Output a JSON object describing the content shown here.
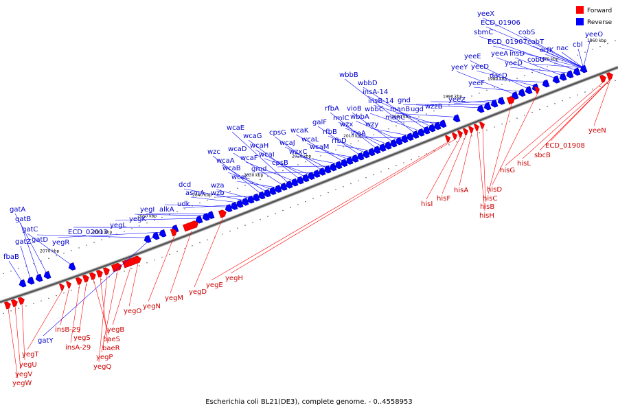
{
  "caption": "Escherichia coli BL21(DE3), complete genome. - 0..4558953",
  "legend": {
    "forward_label": "Forward",
    "reverse_label": "Reverse"
  },
  "colors": {
    "forward": "#ff0000",
    "reverse": "#0000ff",
    "forward_label": "#cc0000",
    "reverse_label": "#0000cc",
    "backbone": "#555555"
  },
  "ticks": [
    "2070 kbp",
    "2060 kbp",
    "2050 kbp",
    "2040 kbp",
    "2030 kbp",
    "2020 kbp",
    "2010 kbp",
    "2000 kbp",
    "1990 kbp",
    "1980 kbp",
    "1970 kbp",
    "1960 kbp"
  ],
  "reverse_genes": [
    "fbaB",
    "gatZ",
    "gatB",
    "gatA",
    "gatC",
    "gatD",
    "gatY",
    "yegR",
    "ECD_02013",
    "yegL",
    "yegK",
    "yegI",
    "alkA",
    "udk",
    "asmA",
    "dcd",
    "wza",
    "wzb",
    "wzc",
    "wcaA",
    "wcaB",
    "wcaC",
    "wcaD",
    "wcaE",
    "wcaF",
    "wcaG",
    "wcaH",
    "wcaI",
    "gmd",
    "cpsG",
    "wcaJ",
    "cpsB",
    "wzxC",
    "wcaK",
    "wcaL",
    "wcaM",
    "galF",
    "rfbB",
    "rfbD",
    "rfbA",
    "rmlC",
    "wzx",
    "vioB",
    "wbbA",
    "vioA",
    "wzy",
    "wbbB",
    "wbbC",
    "wbbD",
    "insA-14",
    "insB-14",
    "manC",
    "manB",
    "gnd",
    "ugd",
    "wzzB",
    "yeeZ",
    "yeeY",
    "yeeF",
    "yeeE",
    "yeeD",
    "dacD",
    "yeeA",
    "insD",
    "yoeD",
    "sbmC",
    "ECD_01906",
    "yeeX",
    "ECD_01907",
    "cobU",
    "cobS",
    "cobT",
    "erfK",
    "nac",
    "cbl",
    "yeeO"
  ],
  "forward_genes": [
    "yegW",
    "yegV",
    "yegU",
    "yegT",
    "insB-29",
    "insA-29",
    "yegS",
    "baeS",
    "baeR",
    "yegQ",
    "yegP",
    "yegB",
    "yegO",
    "yegN",
    "yegM",
    "yegD",
    "yegE",
    "yegH",
    "hisI",
    "hisF",
    "hisA",
    "hisH",
    "hisB",
    "hisC",
    "hisD",
    "hisG",
    "hisL",
    "sbcB",
    "ECD_01908",
    "yeeN"
  ]
}
